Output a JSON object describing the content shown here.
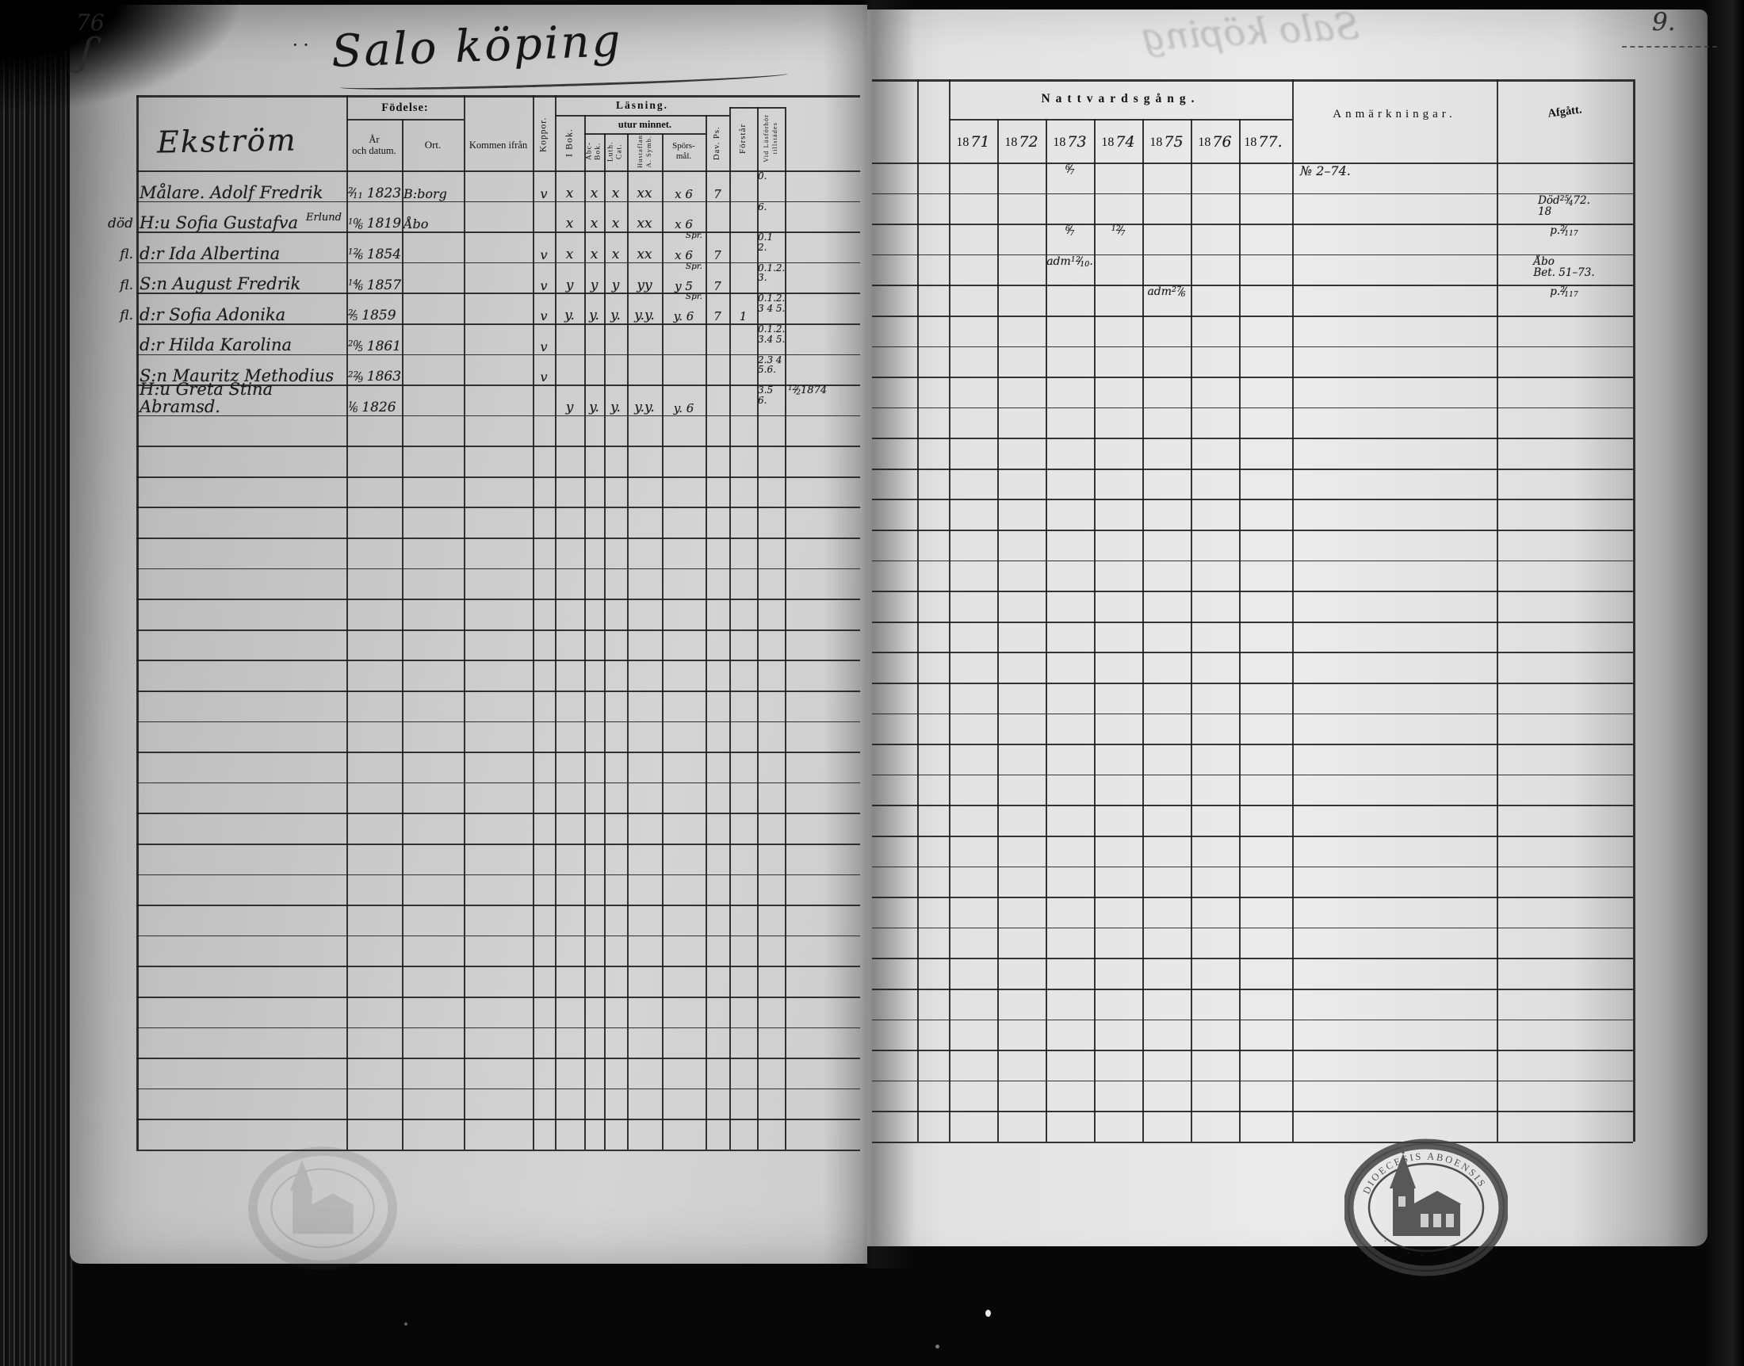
{
  "page": {
    "left_page_number": "76",
    "right_page_mark": "9.",
    "title": "Salo köping",
    "title_dots": "··",
    "ghost_title": "Salo köping",
    "surname_header": "Ekström"
  },
  "columns": {
    "fodelse": "Födelse:",
    "ar": "År",
    "och_datum": "och datum.",
    "ort": "Ort.",
    "kommen_ifran": "Kommen ifrån",
    "koppor": "Koppor.",
    "lasning": "Läsning.",
    "i_bok": "I Bok.",
    "utur_minnet": "utur minnet.",
    "abc_bok": "Abc-Bok.",
    "luth_cat": "Luth. Cat.",
    "hustaflan_1": "Hustaflan",
    "hustaflan_2": "A. Symb.",
    "sporsmal_1": "Spörs-",
    "sporsmal_2": "mål.",
    "dav_ps": "Dav. Ps.",
    "forstar": "Förstår",
    "vid_lasforhor_1": "Vid Läsförhör",
    "vid_lasforhor_2": "tillstädes",
    "nattvardsgang": "Nattvardsgång.",
    "years": [
      "1871",
      "1872",
      "1873",
      "1874",
      "1875",
      "1876",
      "1877."
    ],
    "anmarkningar": "Anmärkningar.",
    "afgatt": "Afgått."
  },
  "rows": [
    {
      "margin": "",
      "name": "Målare. Adolf Fredrik",
      "name_super": "",
      "birth": "2/11",
      "birth_year": "1823",
      "ort": "B:borg",
      "koppor": "v",
      "i_bok": "x",
      "abc_bok": "x",
      "luth_cat": "x",
      "hustaflan": "xx",
      "sporsmal_note": "",
      "sporsmal": "x 6",
      "dav_ps": "7",
      "forstar": "",
      "lasforhor": [
        "0."
      ],
      "lasforhor_extra": "",
      "nattvard": {
        "1873": "6/7"
      },
      "anmarkning": "№ 2–74.",
      "afgatt": []
    },
    {
      "margin": "död",
      "name": "H:u Sofia Gustafva",
      "name_super": "Erlund",
      "birth": "10/6",
      "birth_year": "1819",
      "ort": "Åbo",
      "koppor": "",
      "i_bok": "x",
      "abc_bok": "x",
      "luth_cat": "x",
      "hustaflan": "xx",
      "sporsmal_note": "",
      "sporsmal": "x 6",
      "dav_ps": "",
      "forstar": "",
      "lasforhor": [
        "6."
      ],
      "lasforhor_extra": "",
      "nattvard": {},
      "anmarkning": "",
      "afgatt": [
        "Död",
        "18 25/4 72."
      ]
    },
    {
      "margin": "fl.",
      "name": "d:r Ida Albertina",
      "name_super": "",
      "birth": "12/6",
      "birth_year": "1854",
      "ort": "",
      "koppor": "v",
      "i_bok": "x",
      "abc_bok": "x",
      "luth_cat": "x",
      "hustaflan": "xx",
      "sporsmal_note": "Spr.",
      "sporsmal": "x 6",
      "dav_ps": "7",
      "forstar": "",
      "lasforhor": [
        "0.1 2."
      ],
      "lasforhor_extra": "",
      "nattvard": {
        "1873": "6/7",
        "1874": "12/7"
      },
      "anmarkning": "",
      "afgatt": [
        "p. 2/117"
      ]
    },
    {
      "margin": "fl.",
      "name": "S:n August Fredrik",
      "name_super": "",
      "birth": "14/6",
      "birth_year": "1857",
      "ort": "",
      "koppor": "v",
      "i_bok": "y",
      "abc_bok": "y",
      "luth_cat": "y",
      "hustaflan": "yy",
      "sporsmal_note": "Spr.",
      "sporsmal": "y 5",
      "dav_ps": "7",
      "forstar": "",
      "lasforhor": [
        "0.1.2.",
        "3."
      ],
      "lasforhor_extra": "",
      "nattvard": {
        "1873": "adm 12/10."
      },
      "anmarkning": "",
      "afgatt": [
        "Åbo",
        "Bet. 51–73."
      ]
    },
    {
      "margin": "fl.",
      "name": "d:r Sofia Adonika",
      "name_super": "",
      "birth": "2/5",
      "birth_year": "1859",
      "ort": "",
      "koppor": "v",
      "i_bok": "y.",
      "abc_bok": "y.",
      "luth_cat": "y.",
      "hustaflan": "y.y.",
      "sporsmal_note": "Spr.",
      "sporsmal": "y. 6",
      "dav_ps": "7",
      "forstar": "1",
      "lasforhor": [
        "0.1.2.",
        "3 4 5."
      ],
      "lasforhor_extra": "",
      "nattvard": {
        "1875": "adm 27/6"
      },
      "anmarkning": "",
      "afgatt": [
        "p. 2/117"
      ]
    },
    {
      "margin": "",
      "name": "d:r Hilda Karolina",
      "name_super": "",
      "birth": "20/5",
      "birth_year": "1861",
      "ort": "",
      "koppor": "v",
      "i_bok": "",
      "abc_bok": "",
      "luth_cat": "",
      "hustaflan": "",
      "sporsmal_note": "",
      "sporsmal": "",
      "dav_ps": "",
      "forstar": "",
      "lasforhor": [
        "0.1.2.",
        "3.4 5."
      ],
      "lasforhor_extra": "",
      "nattvard": {},
      "anmarkning": "",
      "afgatt": []
    },
    {
      "margin": "",
      "name": "S:n Mauritz Methodius",
      "name_super": "",
      "birth": "22/9",
      "birth_year": "1863",
      "ort": "",
      "koppor": "v",
      "i_bok": "",
      "abc_bok": "",
      "luth_cat": "",
      "hustaflan": "",
      "sporsmal_note": "",
      "sporsmal": "",
      "dav_ps": "",
      "forstar": "",
      "lasforhor": [
        "2.3 4",
        "5.6."
      ],
      "lasforhor_extra": "",
      "nattvard": {},
      "anmarkning": "",
      "afgatt": []
    },
    {
      "margin": "",
      "name": "H:u Greta Stina Abramsd.",
      "name_super": "",
      "birth": "1/6",
      "birth_year": "1826",
      "ort": "",
      "koppor": "",
      "i_bok": "y",
      "abc_bok": "y.",
      "luth_cat": "y.",
      "hustaflan": "y.y.",
      "sporsmal_note": "",
      "sporsmal": "y. 6",
      "dav_ps": "",
      "forstar": "",
      "lasforhor": [
        "3.5 6."
      ],
      "lasforhor_extra": "12/2 1874",
      "nattvard": {},
      "anmarkning": "",
      "afgatt": []
    }
  ],
  "stamp": {
    "border_text": "DIOECESIS ABOENSIS"
  }
}
